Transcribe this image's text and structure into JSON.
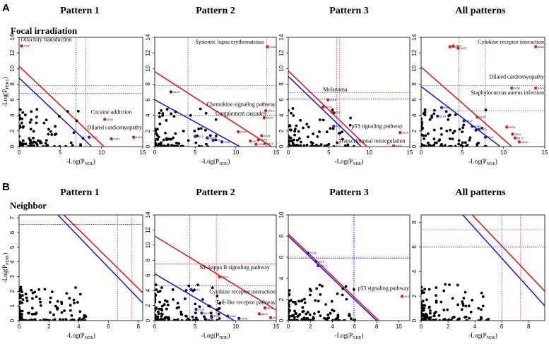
{
  "figure": {
    "panel_a_label": "A",
    "panel_b_label": "B",
    "row_a_title": "Focal irradiation",
    "row_b_title": "Neighbor",
    "column_titles": [
      "Pattern 1",
      "Pattern 2",
      "Pattern 3",
      "All patterns"
    ]
  },
  "colors": {
    "red": "#e41a1c",
    "blue": "#1f1fd6",
    "black": "#000000"
  },
  "chart_data": [
    {
      "type": "scatter",
      "id": "A1",
      "row": "A",
      "title": "Pattern 1",
      "xlabel_main": "-Log(P",
      "xlabel_sub": "NDE",
      "ylabel_main": "-Log(P",
      "ylabel_sub": "PERT",
      "xlim": [
        0,
        15
      ],
      "ylim": [
        0,
        14
      ],
      "xticks": [
        0,
        5,
        10,
        15
      ],
      "xtick_labels": [
        "0",
        "5",
        "10",
        "15"
      ],
      "yticks": [
        0,
        2,
        4,
        6,
        8,
        10,
        12,
        14
      ],
      "ytick_labels": [
        "0",
        "2",
        "4",
        "6",
        "8",
        "10",
        "12",
        "14"
      ],
      "red_diag": [
        [
          0,
          10.3
        ],
        [
          10.3,
          0
        ]
      ],
      "blue_diag": [
        [
          0,
          8.8
        ],
        [
          8.8,
          0
        ]
      ],
      "red_h": 7.8,
      "red_v": 8.1,
      "blue_h": 6.8,
      "blue_v": 6.9,
      "red_points": [
        {
          "x": 0.3,
          "y": 12.9,
          "label": "4740"
        },
        {
          "x": 10.4,
          "y": 3.5,
          "label": "5030"
        },
        {
          "x": 13.9,
          "y": 1.2,
          "label": "5414"
        },
        {
          "x": 11.2,
          "y": 1.0,
          "label": "5412"
        }
      ],
      "blue_points": [
        {
          "x": 8.5,
          "y": 1.2,
          "label": "4723"
        }
      ],
      "annotations": [
        {
          "text": "Olfactory transduction",
          "x": 0.2,
          "y": 13.5
        },
        {
          "text": "Cocaine addiction",
          "x": 8.7,
          "y": 4.2
        },
        {
          "text": "Dilated cardiomyopathy",
          "x": 8.3,
          "y": 2.2
        }
      ]
    },
    {
      "type": "scatter",
      "id": "A2",
      "row": "A",
      "title": "Pattern 2",
      "xlabel_main": "-Log(P",
      "xlabel_sub": "NDE",
      "ylabel_main": "",
      "ylabel_sub": "",
      "xlim": [
        0,
        15
      ],
      "ylim": [
        0,
        14
      ],
      "xticks": [
        0,
        5,
        10,
        15
      ],
      "xtick_labels": [
        "0",
        "5",
        "10",
        "15"
      ],
      "yticks": [
        0,
        2,
        4,
        6,
        8,
        10,
        12,
        14
      ],
      "ytick_labels": [
        "0",
        "2",
        "4",
        "6",
        "8",
        "10",
        "12",
        "14"
      ],
      "red_diag": [
        [
          0,
          9.6
        ],
        [
          14.4,
          0
        ]
      ],
      "blue_diag": [
        [
          0,
          6.0
        ],
        [
          10.5,
          0
        ]
      ],
      "red_h": 7.8,
      "red_v": 13.8,
      "blue_h": 4.0,
      "blue_v": 4.1,
      "red_points": [
        {
          "x": 13.9,
          "y": 12.8,
          "label": "5322"
        },
        {
          "x": 13.7,
          "y": 4.6,
          "label": "4610"
        },
        {
          "x": 13.5,
          "y": 3.7,
          "label": "5150"
        },
        {
          "x": 10.3,
          "y": 1.9,
          "label": "5332"
        },
        {
          "x": 13.2,
          "y": 1.4,
          "label": "5140"
        },
        {
          "x": 12.8,
          "y": 0.9,
          "label": "4940"
        },
        {
          "x": 11.8,
          "y": 0.7,
          "label": "4672"
        },
        {
          "x": 13.6,
          "y": 0.4,
          "label": "5416"
        },
        {
          "x": 12.5,
          "y": 0.3,
          "label": "5330"
        }
      ],
      "blue_points": [
        {
          "x": 2.0,
          "y": 7.0,
          "label": "5416"
        },
        {
          "x": 5.0,
          "y": 1.3,
          "label": "4612"
        },
        {
          "x": 6.5,
          "y": 1.1,
          "label": "4060"
        },
        {
          "x": 7.2,
          "y": 0.8,
          "label": "5164"
        },
        {
          "x": 8.3,
          "y": 0.6,
          "label": "4630"
        }
      ],
      "annotations": [
        {
          "text": "Systemic lupus erythematosus",
          "x": 5.0,
          "y": 13.2
        },
        {
          "text": "Chemokine signaling pathway",
          "x": 7.0,
          "y": 5.2
        },
        {
          "text": "Complement cascades",
          "x": 7.5,
          "y": 4.0
        }
      ]
    },
    {
      "type": "scatter",
      "id": "A3",
      "row": "A",
      "title": "Pattern 3",
      "xlabel_main": "-Log(P",
      "xlabel_sub": "NDE",
      "ylabel_main": "",
      "ylabel_sub": "",
      "xlim": [
        0,
        15
      ],
      "ylim": [
        0,
        14
      ],
      "xticks": [
        0,
        5,
        10,
        15
      ],
      "xtick_labels": [
        "0",
        "5",
        "10",
        "15"
      ],
      "yticks": [
        0,
        2,
        4,
        6,
        8,
        10,
        12,
        14
      ],
      "ytick_labels": [
        "0",
        "2",
        "4",
        "6",
        "8",
        "10",
        "12",
        "14"
      ],
      "red_diag": [
        [
          0,
          9.7
        ],
        [
          9.7,
          0
        ]
      ],
      "blue_diag": [
        [
          0,
          9.0
        ],
        [
          9.0,
          0
        ]
      ],
      "red_h": 6.9,
      "red_v": 6.3,
      "blue_h": 6.1,
      "blue_v": 6.0,
      "red_points": [
        {
          "x": 4.9,
          "y": 6.0,
          "label": "5218"
        },
        {
          "x": 4.3,
          "y": 5.1,
          "label": "5214"
        },
        {
          "x": 5.4,
          "y": 4.4,
          "label": "5202"
        },
        {
          "x": 13.8,
          "y": 1.8,
          "label": "4115"
        },
        {
          "x": 13.0,
          "y": 0.1,
          "label": "5202"
        }
      ],
      "blue_points": [
        {
          "x": 5.6,
          "y": 2.6,
          "label": "5202"
        }
      ],
      "annotations": [
        {
          "text": "Melanoma",
          "x": 4.3,
          "y": 7.1
        },
        {
          "text": "p53 signaling pathway",
          "x": 7.8,
          "y": 2.4
        },
        {
          "text": "Transcriptional misregulation",
          "x": 6.2,
          "y": 0.5
        }
      ]
    },
    {
      "type": "scatter",
      "id": "A4",
      "row": "A",
      "title": "All patterns",
      "xlabel_main": "-Log(P",
      "xlabel_sub": "NDE",
      "ylabel_main": "",
      "ylabel_sub": "",
      "xlim": [
        0,
        15
      ],
      "ylim": [
        0,
        14
      ],
      "xticks": [
        0,
        5,
        10,
        15
      ],
      "xtick_labels": [
        "0",
        "5",
        "10",
        "15"
      ],
      "yticks": [
        0,
        2,
        4,
        6,
        8,
        10,
        12,
        14
      ],
      "ytick_labels": [
        "0",
        "2",
        "4",
        "6",
        "8",
        "10",
        "12",
        "14"
      ],
      "red_diag": [
        [
          0,
          10.2
        ],
        [
          11.0,
          0
        ]
      ],
      "blue_diag": [
        [
          0,
          7.7
        ],
        [
          9.6,
          0
        ]
      ],
      "red_h": 7.8,
      "red_v": 7.8,
      "blue_h": 4.6,
      "blue_v": 4.6,
      "red_points": [
        {
          "x": 3.5,
          "y": 12.8,
          "label": "4062"
        },
        {
          "x": 3.9,
          "y": 12.9,
          "label": "4612"
        },
        {
          "x": 4.5,
          "y": 12.6,
          "label": "5322"
        },
        {
          "x": 13.9,
          "y": 12.8,
          "label": "4060"
        },
        {
          "x": 11.0,
          "y": 7.5,
          "label": "5150"
        },
        {
          "x": 13.9,
          "y": 7.5,
          "label": "5414"
        },
        {
          "x": 10.4,
          "y": 2.5,
          "label": "5030"
        },
        {
          "x": 11.1,
          "y": 1.6,
          "label": "5031"
        },
        {
          "x": 11.4,
          "y": 1.1,
          "label": "5412"
        },
        {
          "x": 11.9,
          "y": 0.6,
          "label": "4630"
        },
        {
          "x": 6.8,
          "y": 3.8,
          "label": "4145"
        }
      ],
      "blue_points": [
        {
          "x": 2.5,
          "y": 5.0,
          "label": "4666"
        },
        {
          "x": 2.0,
          "y": 3.9,
          "label": "5164"
        },
        {
          "x": 5.2,
          "y": 3.3,
          "label": "4612"
        },
        {
          "x": 6.2,
          "y": 2.6,
          "label": "4060"
        },
        {
          "x": 7.0,
          "y": 2.2,
          "label": "5321"
        },
        {
          "x": 7.8,
          "y": 1.2,
          "label": "5322"
        }
      ],
      "annotations": [
        {
          "text": "Cytokine receptor interaction",
          "x": 7.6,
          "y": 13.2
        },
        {
          "text": "Dilated cardiomyopathy",
          "x": 9.4,
          "y": 8.7
        },
        {
          "text": "Staphylococcus aureus infection",
          "x": 7.0,
          "y": 6.7
        }
      ]
    },
    {
      "type": "scatter",
      "id": "B1",
      "row": "B",
      "title": "Pattern 1",
      "xlabel_main": "-Log(P",
      "xlabel_sub": "NDE",
      "ylabel_main": "-Log(P",
      "ylabel_sub": "PERT",
      "xlim": [
        0,
        8.3
      ],
      "ylim": [
        0,
        7.2
      ],
      "xticks": [
        0,
        2,
        4,
        6,
        8
      ],
      "xtick_labels": [
        "0",
        "2",
        "4",
        "6",
        "8"
      ],
      "yticks": [
        0,
        1,
        2,
        3,
        4,
        5,
        6,
        7
      ],
      "ytick_labels": [
        "0",
        "1",
        "2",
        "3",
        "4",
        "5",
        "6",
        "7"
      ],
      "red_diag": [
        [
          3.0,
          7.2
        ],
        [
          8.3,
          1.9
        ]
      ],
      "blue_diag": [
        [
          2.6,
          7.2
        ],
        [
          8.3,
          1.2
        ]
      ],
      "red_h": 6.55,
      "red_v": 7.55,
      "blue_h": 6.55,
      "blue_v": 6.6,
      "red_points": [],
      "blue_points": [],
      "annotations": []
    },
    {
      "type": "scatter",
      "id": "B2",
      "row": "B",
      "title": "Pattern 2",
      "xlabel_main": "-Log(P",
      "xlabel_sub": "NDE",
      "ylabel_main": "",
      "ylabel_sub": "",
      "xlim": [
        0,
        15
      ],
      "ylim": [
        0,
        14
      ],
      "xticks": [
        0,
        5,
        10,
        15
      ],
      "xtick_labels": [
        "0",
        "5",
        "10",
        "15"
      ],
      "yticks": [
        0,
        2,
        4,
        6,
        8,
        10,
        12,
        14
      ],
      "ytick_labels": [
        "0",
        "2",
        "4",
        "6",
        "8",
        "10",
        "12",
        "14"
      ],
      "red_diag": [
        [
          0,
          11.2
        ],
        [
          15,
          1.4
        ]
      ],
      "blue_diag": [
        [
          0,
          6.2
        ],
        [
          9.8,
          0
        ]
      ],
      "red_h": 7.5,
      "red_v": 7.6,
      "blue_h": 4.6,
      "blue_v": 4.3,
      "red_points": [
        {
          "x": 8.0,
          "y": 5.8,
          "label": "4064"
        },
        {
          "x": 13.6,
          "y": 1.7,
          "label": "4060"
        },
        {
          "x": 12.9,
          "y": 0.9,
          "label": "4620"
        },
        {
          "x": 14.3,
          "y": 0.4,
          "label": "4062"
        }
      ],
      "blue_points": [
        {
          "x": 4.5,
          "y": 4.1,
          "label": "5143"
        },
        {
          "x": 5.1,
          "y": 1.5,
          "label": "5150"
        },
        {
          "x": 5.8,
          "y": 1.0,
          "label": "4612"
        },
        {
          "x": 7.0,
          "y": 0.6,
          "label": "5150"
        },
        {
          "x": 9.0,
          "y": 0.6,
          "label": "5152"
        },
        {
          "x": 10.4,
          "y": 0.3,
          "label": "4145"
        }
      ],
      "annotations": [
        {
          "text": "NF-kappa B signaling pathway",
          "x": 5.5,
          "y": 6.8
        },
        {
          "text": "Cytokine receptor interaction",
          "x": 9.0,
          "y": 3.6
        },
        {
          "text": "Toll-like receptor pathway",
          "x": 10.2,
          "y": 2.2
        }
      ]
    },
    {
      "type": "scatter",
      "id": "B3",
      "row": "B",
      "title": "Pattern 3",
      "xlabel_main": "-Log(P",
      "xlabel_sub": "NDE",
      "ylabel_main": "",
      "ylabel_sub": "",
      "xlim": [
        0,
        11
      ],
      "ylim": [
        0,
        10
      ],
      "xticks": [
        0,
        2,
        4,
        6,
        8,
        10
      ],
      "xtick_labels": [
        "0",
        "2",
        "4",
        "6",
        "8",
        "10"
      ],
      "yticks": [
        0,
        2,
        4,
        6,
        8,
        10
      ],
      "ytick_labels": [
        "0",
        "2",
        "4",
        "6",
        "8",
        "10"
      ],
      "red_diag": [
        [
          0,
          8.2
        ],
        [
          8.2,
          0
        ]
      ],
      "blue_diag": [
        [
          0,
          8.0
        ],
        [
          8.0,
          0
        ]
      ],
      "red_h": 6.0,
      "red_v": 6.0,
      "blue_h": 5.9,
      "blue_v": 5.9,
      "red_points": [
        {
          "x": 10.3,
          "y": 2.3,
          "label": "4115"
        }
      ],
      "blue_points": [
        {
          "x": 1.8,
          "y": 6.4,
          "label": "5166"
        },
        {
          "x": 2.5,
          "y": 5.6,
          "label": "5218"
        },
        {
          "x": 2.7,
          "y": 5.2,
          "label": "5214"
        }
      ],
      "annotations": [
        {
          "text": "p53 signaling pathway",
          "x": 6.4,
          "y": 2.9
        }
      ]
    },
    {
      "type": "scatter",
      "id": "B4",
      "row": "B",
      "title": "All patterns",
      "xlabel_main": "-Log(P",
      "xlabel_sub": "NDE",
      "ylabel_main": "",
      "ylabel_sub": "",
      "xlim": [
        0,
        9.2
      ],
      "ylim": [
        0,
        8.6
      ],
      "xticks": [
        0,
        2,
        4,
        6,
        8
      ],
      "xtick_labels": [
        "0",
        "2",
        "4",
        "6",
        "8"
      ],
      "yticks": [
        0,
        2,
        4,
        6,
        8
      ],
      "ytick_labels": [
        "0",
        "2",
        "4",
        "6",
        "8"
      ],
      "red_diag": [
        [
          3.8,
          8.6
        ],
        [
          9.2,
          2.4
        ]
      ],
      "blue_diag": [
        [
          3.1,
          8.6
        ],
        [
          9.2,
          1.2
        ]
      ],
      "red_h": 7.4,
      "red_v": 7.4,
      "blue_h": 6.0,
      "blue_v": 6.0,
      "red_points": [],
      "blue_points": [],
      "annotations": []
    }
  ]
}
